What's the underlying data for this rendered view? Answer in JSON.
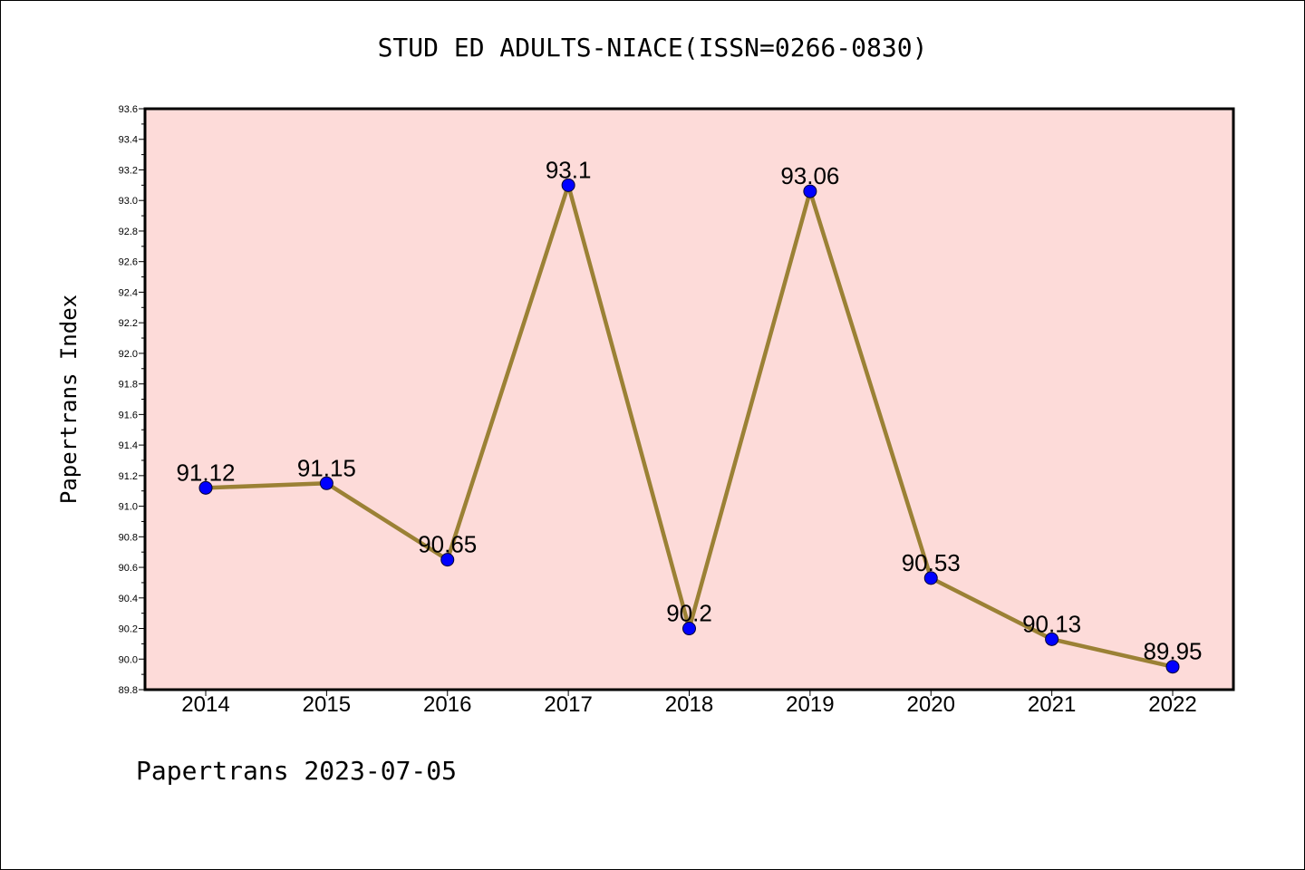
{
  "title": "STUD ED ADULTS-NIACE(ISSN=0266-0830)",
  "footer": "Papertrans 2023-07-05",
  "colors": {
    "plot_background": "#fddbd9",
    "line": "#9b8135",
    "marker": "#0000ff"
  },
  "chart_data": {
    "type": "line",
    "title": "STUD ED ADULTS-NIACE(ISSN=0266-0830)",
    "xlabel": "",
    "ylabel": "Papertrans Index",
    "categories": [
      "2014",
      "2015",
      "2016",
      "2017",
      "2018",
      "2019",
      "2020",
      "2021",
      "2022"
    ],
    "series": [
      {
        "values": [
          91.12,
          91.15,
          90.65,
          93.1,
          90.2,
          93.06,
          90.53,
          90.13,
          89.95
        ],
        "data_labels": [
          "91.12",
          "91.15",
          "90.65",
          "93.1",
          "90.2",
          "93.06",
          "90.53",
          "90.13",
          "89.95"
        ]
      }
    ],
    "ylim": [
      89.8,
      93.6
    ],
    "yticks": [
      "89.8",
      "90.0",
      "90.2",
      "90.4",
      "90.6",
      "90.8",
      "91.0",
      "91.2",
      "91.4",
      "91.6",
      "91.8",
      "92.0",
      "92.2",
      "92.4",
      "92.6",
      "92.8",
      "93.0",
      "93.2",
      "93.4",
      "93.6"
    ],
    "grid": false,
    "legend": "none"
  }
}
